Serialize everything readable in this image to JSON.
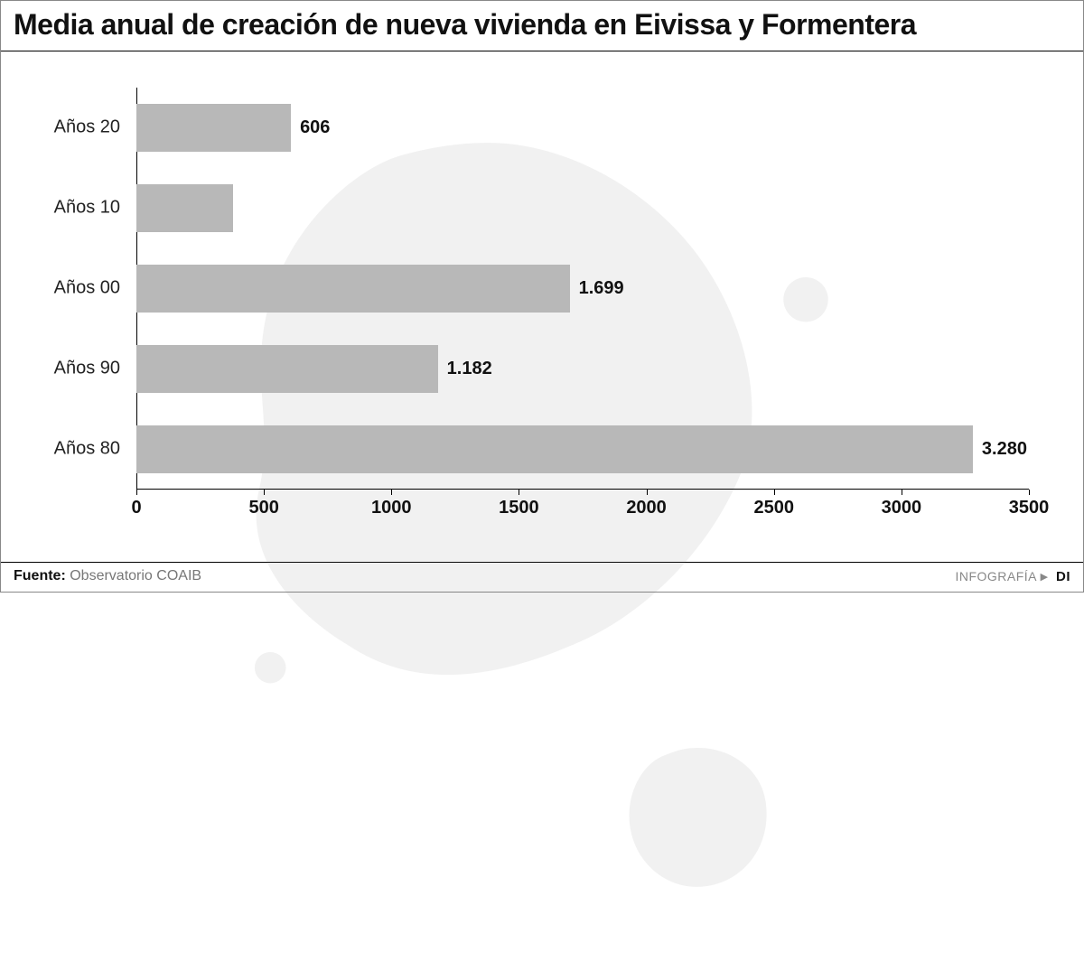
{
  "title": "Media anual de creación de nueva vivienda en Eivissa y Formentera",
  "title_fontsize": 32,
  "chart": {
    "type": "bar-horizontal",
    "background_color": "#ffffff",
    "bar_color": "#b8b8b8",
    "axis_color": "#000000",
    "label_color": "#222222",
    "value_color": "#111111",
    "category_fontsize": 20,
    "value_fontsize": 20,
    "tick_fontsize": 20,
    "bar_height_pct": 60,
    "xlim": [
      0,
      3500
    ],
    "xtick_step": 500,
    "xticks": [
      0,
      500,
      1000,
      1500,
      2000,
      2500,
      3000,
      3500
    ],
    "categories": [
      "Años 20",
      "Años 10",
      "Años 00",
      "Años 90",
      "Años 80"
    ],
    "values": [
      606,
      380,
      1699,
      1182,
      3280
    ],
    "value_labels": [
      "606",
      "",
      "1.699",
      "1.182",
      "3.280"
    ],
    "map_silhouette_color": "#6b6b6b",
    "map_opacity": 0.09
  },
  "footer": {
    "source_label": "Fuente:",
    "source_value": "Observatorio COAIB",
    "credit_label": "INFOGRAFÍA",
    "credit_brand": "DI"
  }
}
